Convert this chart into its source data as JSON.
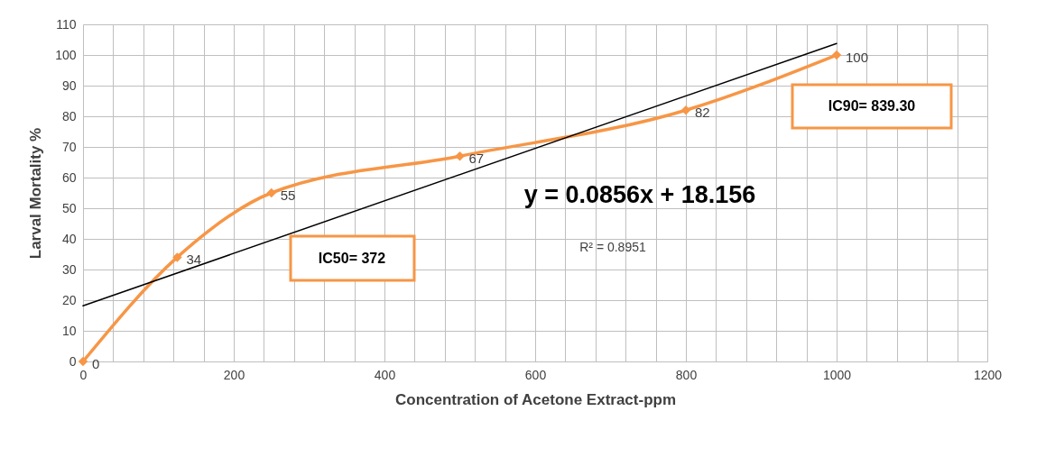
{
  "chart_data": {
    "type": "line",
    "xlabel": "Concentration of Acetone Extract-ppm",
    "ylabel": "Larval Mortality %",
    "x": [
      0,
      125,
      250,
      500,
      800,
      1000
    ],
    "series": [
      {
        "color": "#f79646",
        "values": [
          0,
          34,
          55,
          67,
          82,
          100
        ],
        "value_labels": [
          "0",
          "34",
          "55",
          "67",
          "82",
          "100"
        ],
        "marker": "diamond"
      },
      {
        "type": "line",
        "color": "#000000",
        "x": [
          0,
          1000
        ],
        "values": [
          18.156,
          103.756
        ]
      }
    ],
    "annotations": [
      "y = 0.0856x + 18.156",
      "R² = 0.8951",
      "IC50= 372",
      "IC90= 839.30"
    ],
    "xlim": [
      0,
      1200
    ],
    "xticks": [
      0,
      {
        "value": 40,
        "label": null
      },
      {
        "value": 80,
        "label": null
      },
      {
        "value": 120,
        "label": null
      },
      {
        "value": 160,
        "label": null
      },
      200,
      {
        "value": 240,
        "label": null
      },
      {
        "value": 280,
        "label": null
      },
      {
        "value": 320,
        "label": null
      },
      {
        "value": 360,
        "label": null
      },
      400,
      {
        "value": 440,
        "label": null
      },
      {
        "value": 480,
        "label": null
      },
      {
        "value": 520,
        "label": null
      },
      {
        "value": 560,
        "label": null
      },
      600,
      {
        "value": 640,
        "label": null
      },
      {
        "value": 680,
        "label": null
      },
      {
        "value": 720,
        "label": null
      },
      {
        "value": 760,
        "label": null
      },
      800,
      {
        "value": 840,
        "label": null
      },
      {
        "value": 880,
        "label": null
      },
      {
        "value": 920,
        "label": null
      },
      {
        "value": 960,
        "label": null
      },
      1000,
      {
        "value": 1040,
        "label": null
      },
      {
        "value": 1080,
        "label": null
      },
      {
        "value": 1120,
        "label": null
      },
      {
        "value": 1160,
        "label": null
      },
      1200
    ],
    "ylim": [
      0,
      110
    ],
    "yticks": [
      0,
      10,
      20,
      30,
      40,
      50,
      60,
      70,
      80,
      90,
      100,
      110
    ],
    "grid": true,
    "line_style": "solid"
  }
}
